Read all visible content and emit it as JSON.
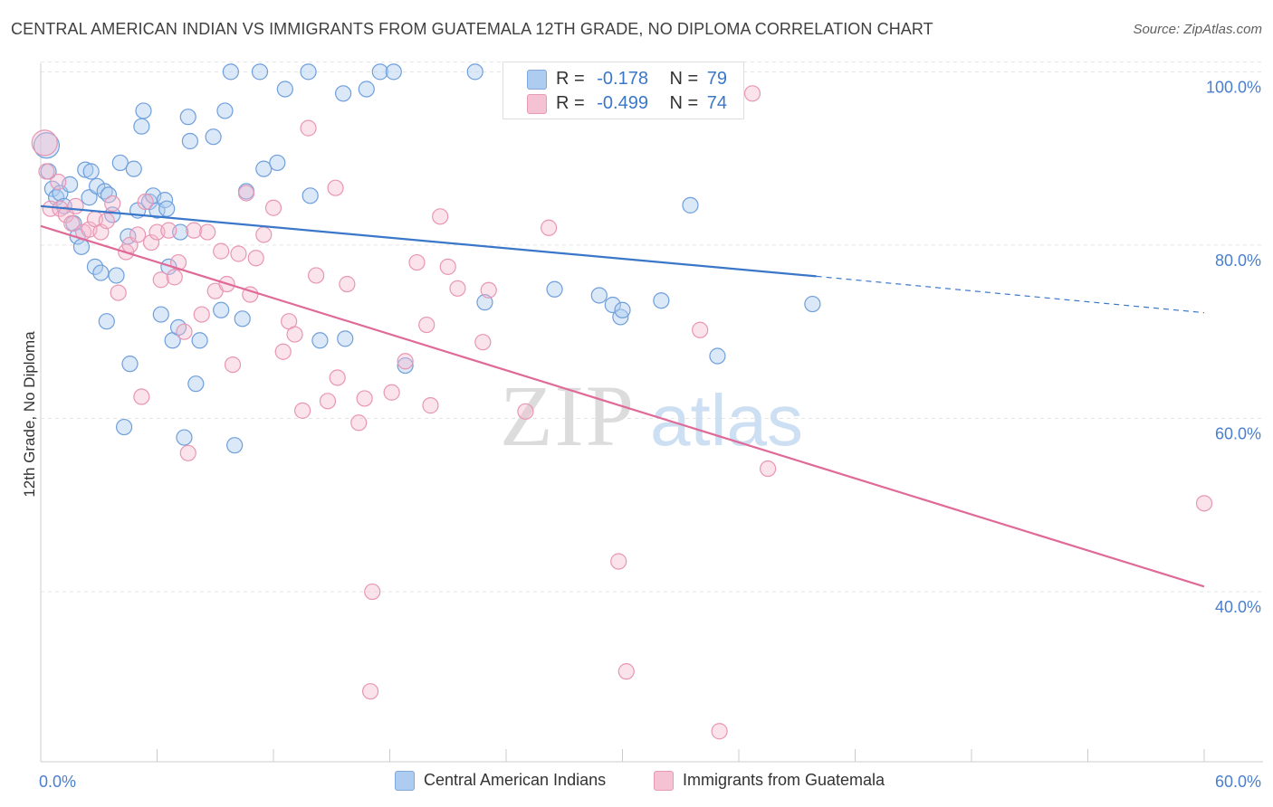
{
  "title": "CENTRAL AMERICAN INDIAN VS IMMIGRANTS FROM GUATEMALA 12TH GRADE, NO DIPLOMA CORRELATION CHART",
  "source": "Source: ZipAtlas.com",
  "watermark": {
    "zip": "ZIP",
    "atlas": "atlas"
  },
  "legend": {
    "rows": [
      {
        "r_label": "R =",
        "r_value": "-0.178",
        "n_label": "N =",
        "n_value": "79"
      },
      {
        "r_label": "R =",
        "r_value": "-0.499",
        "n_label": "N =",
        "n_value": "74"
      }
    ]
  },
  "bottom_legend": [
    "Central American Indians",
    "Immigrants from Guatemala"
  ],
  "colors": {
    "blue": "#3a77c9",
    "blue_fill": "#aecbf0",
    "pink": "#e06a97",
    "pink_fill": "#f5b8cc",
    "axis_label": "#4a7fcf"
  },
  "chart_data": {
    "type": "scatter",
    "ylabel": "12th Grade, No Diploma",
    "xlim": [
      0,
      60
    ],
    "ylim": [
      20,
      102
    ],
    "x_tick_labels": [
      "0.0%",
      "60.0%"
    ],
    "y_tick_labels": [
      "100.0%",
      "80.0%",
      "60.0%",
      "40.0%"
    ],
    "y_ticks": [
      100,
      80,
      60,
      40
    ],
    "series": [
      {
        "name": "Central American Indians",
        "color": "#3a77c9",
        "trend": {
          "x0": 0,
          "y0": 84.5,
          "x1": 40,
          "y1": 76.4,
          "dash_x1": 60,
          "dash_y1": 72.2
        },
        "points": [
          [
            0.3,
            91.5
          ],
          [
            0.4,
            88.5
          ],
          [
            0.6,
            86.5
          ],
          [
            0.8,
            85.5
          ],
          [
            1.0,
            86
          ],
          [
            1.2,
            84.5
          ],
          [
            1.5,
            87
          ],
          [
            1.7,
            82.5
          ],
          [
            1.9,
            81
          ],
          [
            2.1,
            79.8
          ],
          [
            2.3,
            88.7
          ],
          [
            2.5,
            85.5
          ],
          [
            2.6,
            88.5
          ],
          [
            2.8,
            77.5
          ],
          [
            2.9,
            86.8
          ],
          [
            3.1,
            76.8
          ],
          [
            3.3,
            86.2
          ],
          [
            3.4,
            71.2
          ],
          [
            3.5,
            85.8
          ],
          [
            3.7,
            83.5
          ],
          [
            3.9,
            76.5
          ],
          [
            4.1,
            89.5
          ],
          [
            4.3,
            59
          ],
          [
            4.5,
            81
          ],
          [
            4.6,
            66.3
          ],
          [
            4.8,
            88.8
          ],
          [
            5.0,
            84
          ],
          [
            5.2,
            93.7
          ],
          [
            5.3,
            95.5
          ],
          [
            5.6,
            85
          ],
          [
            5.8,
            85.7
          ],
          [
            6.0,
            84
          ],
          [
            6.2,
            72
          ],
          [
            6.4,
            85.2
          ],
          [
            6.5,
            84.2
          ],
          [
            6.6,
            77.5
          ],
          [
            6.8,
            69
          ],
          [
            7.1,
            70.5
          ],
          [
            7.2,
            81.5
          ],
          [
            7.4,
            57.8
          ],
          [
            7.6,
            94.8
          ],
          [
            7.7,
            92
          ],
          [
            8.0,
            64
          ],
          [
            8.2,
            69
          ],
          [
            8.9,
            92.5
          ],
          [
            9.3,
            72.5
          ],
          [
            9.5,
            95.5
          ],
          [
            9.8,
            100
          ],
          [
            10.0,
            56.9
          ],
          [
            10.4,
            71.5
          ],
          [
            10.6,
            86.2
          ],
          [
            11.3,
            100
          ],
          [
            11.5,
            88.8
          ],
          [
            12.2,
            89.5
          ],
          [
            12.6,
            98
          ],
          [
            13.8,
            100
          ],
          [
            13.9,
            85.7
          ],
          [
            14.4,
            69
          ],
          [
            15.6,
            97.5
          ],
          [
            15.7,
            69.2
          ],
          [
            16.8,
            98
          ],
          [
            17.5,
            100
          ],
          [
            18.2,
            100
          ],
          [
            18.8,
            66.1
          ],
          [
            22.4,
            100
          ],
          [
            22.9,
            73.4
          ],
          [
            26.5,
            74.9
          ],
          [
            28.8,
            74.2
          ],
          [
            29.5,
            73.1
          ],
          [
            29.9,
            71.7
          ],
          [
            30.0,
            72.5
          ],
          [
            32.0,
            73.6
          ],
          [
            33.5,
            84.6
          ],
          [
            34.9,
            67.2
          ],
          [
            39.8,
            73.2
          ]
        ]
      },
      {
        "name": "Immigrants from Guatemala",
        "color": "#e06a97",
        "trend": {
          "x0": 0,
          "y0": 82.2,
          "x1": 60,
          "y1": 40.6
        },
        "points": [
          [
            0.2,
            91.8
          ],
          [
            0.3,
            88.5
          ],
          [
            0.5,
            84.2
          ],
          [
            0.9,
            87.3
          ],
          [
            1.0,
            84.2
          ],
          [
            1.3,
            83.5
          ],
          [
            1.6,
            82.5
          ],
          [
            1.8,
            84.5
          ],
          [
            2.2,
            81.5
          ],
          [
            2.5,
            81.8
          ],
          [
            2.8,
            83
          ],
          [
            3.1,
            81.5
          ],
          [
            3.4,
            82.8
          ],
          [
            3.7,
            84.8
          ],
          [
            4.0,
            74.5
          ],
          [
            4.4,
            79.2
          ],
          [
            4.6,
            80
          ],
          [
            5.0,
            81.2
          ],
          [
            5.2,
            62.5
          ],
          [
            5.4,
            85
          ],
          [
            5.7,
            80.3
          ],
          [
            6.0,
            81.5
          ],
          [
            6.2,
            76
          ],
          [
            6.6,
            81.7
          ],
          [
            6.9,
            76.3
          ],
          [
            7.1,
            78
          ],
          [
            7.4,
            70
          ],
          [
            7.6,
            56
          ],
          [
            7.9,
            81.7
          ],
          [
            8.3,
            72
          ],
          [
            8.6,
            81.5
          ],
          [
            9.0,
            74.7
          ],
          [
            9.3,
            79.3
          ],
          [
            9.6,
            75.5
          ],
          [
            9.9,
            66.2
          ],
          [
            10.2,
            79
          ],
          [
            10.6,
            86
          ],
          [
            10.8,
            74.3
          ],
          [
            11.1,
            78.5
          ],
          [
            11.5,
            81.2
          ],
          [
            12.0,
            84.3
          ],
          [
            12.5,
            67.7
          ],
          [
            12.8,
            71.2
          ],
          [
            13.1,
            69.7
          ],
          [
            13.5,
            60.9
          ],
          [
            13.8,
            93.5
          ],
          [
            14.2,
            76.5
          ],
          [
            14.8,
            62
          ],
          [
            15.2,
            86.6
          ],
          [
            15.3,
            64.7
          ],
          [
            15.8,
            75.5
          ],
          [
            16.4,
            59.5
          ],
          [
            16.7,
            62.3
          ],
          [
            17.0,
            28.5
          ],
          [
            17.1,
            40
          ],
          [
            18.1,
            63
          ],
          [
            18.8,
            66.6
          ],
          [
            19.4,
            78
          ],
          [
            19.9,
            70.8
          ],
          [
            20.1,
            61.5
          ],
          [
            20.6,
            83.3
          ],
          [
            21.0,
            77.5
          ],
          [
            21.5,
            75
          ],
          [
            22.8,
            68.8
          ],
          [
            23.1,
            74.8
          ],
          [
            25.0,
            60.8
          ],
          [
            26.2,
            82
          ],
          [
            29.8,
            43.5
          ],
          [
            30.2,
            30.8
          ],
          [
            34.0,
            70.2
          ],
          [
            35.0,
            23.9
          ],
          [
            36.7,
            97.5
          ],
          [
            37.5,
            54.2
          ],
          [
            60.0,
            50.2
          ]
        ]
      }
    ]
  }
}
